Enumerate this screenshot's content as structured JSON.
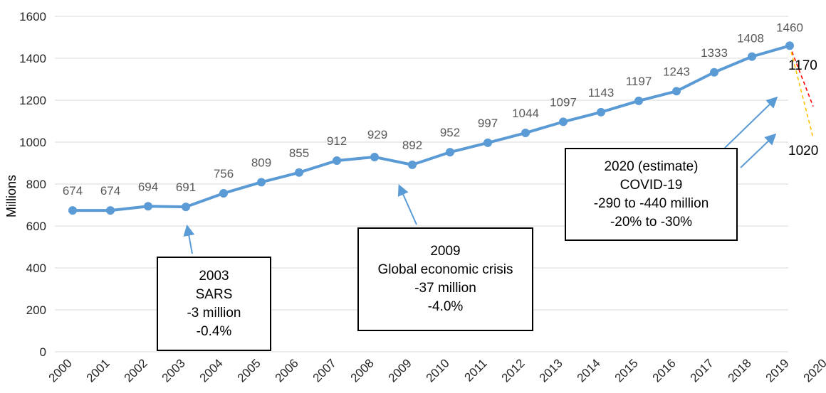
{
  "chart_data": {
    "type": "line",
    "ylabel": "Millions",
    "ylim": [
      0,
      1600
    ],
    "yticks": [
      0,
      200,
      400,
      600,
      800,
      1000,
      1200,
      1400,
      1600
    ],
    "xticks": [
      "2000",
      "2001",
      "2002",
      "2003",
      "2004",
      "2005",
      "2006",
      "2007",
      "2008",
      "2009",
      "2010",
      "2011",
      "2012",
      "2013",
      "2014",
      "2015",
      "2016",
      "2017",
      "2018",
      "2019",
      "2020"
    ],
    "grid": true,
    "series": [
      {
        "x": [
          2000,
          2001,
          2002,
          2003,
          2004,
          2005,
          2006,
          2007,
          2008,
          2009,
          2010,
          2011,
          2012,
          2013,
          2014,
          2015,
          2016,
          2017,
          2018,
          2019
        ],
        "values": [
          674,
          674,
          694,
          691,
          756,
          809,
          855,
          912,
          929,
          892,
          952,
          997,
          1044,
          1097,
          1143,
          1197,
          1243,
          1333,
          1408,
          1460
        ],
        "color": "#5b9bd5"
      }
    ],
    "projections": [
      {
        "label": "1170",
        "x": 2020,
        "value": 1170,
        "color": "#ff0000"
      },
      {
        "label": "1020",
        "x": 2020,
        "value": 1020,
        "color": "#ffc000"
      }
    ],
    "annotations": [
      {
        "id": "sars",
        "lines": [
          "2003",
          "SARS",
          "-3 million",
          "-0.4%"
        ]
      },
      {
        "id": "crisis",
        "lines": [
          "2009",
          "Global economic crisis",
          "-37 million",
          "-4.0%"
        ]
      },
      {
        "id": "covid",
        "lines": [
          "2020 (estimate)",
          "COVID-19",
          "-290 to -440 million",
          "-20% to -30%"
        ]
      }
    ]
  }
}
